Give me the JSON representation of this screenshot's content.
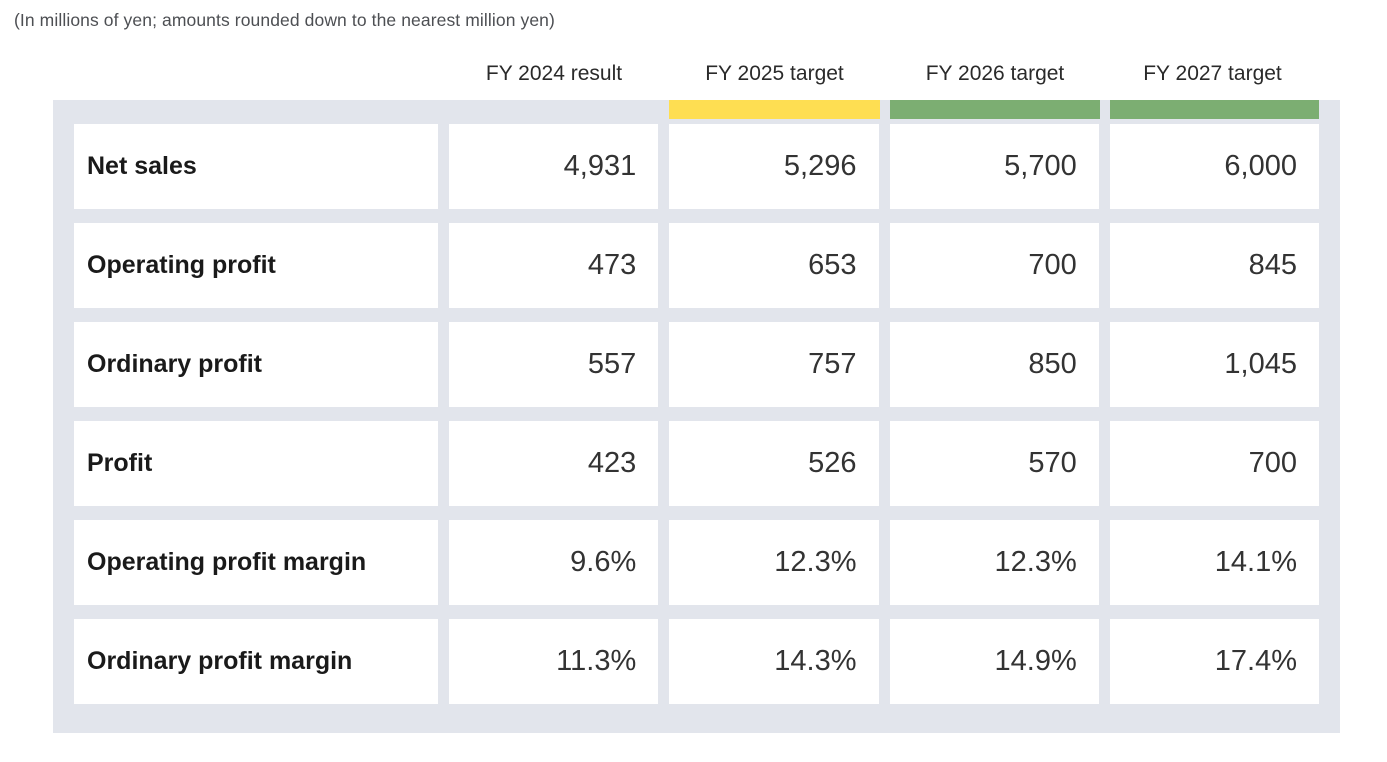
{
  "caption": "(In millions of yen; amounts rounded down to the nearest million yen)",
  "columns": [
    "FY 2024 result",
    "FY 2025 target",
    "FY 2026 target",
    "FY 2027 target"
  ],
  "rows": [
    {
      "label": "Net sales",
      "values": [
        "4,931",
        "5,296",
        "5,700",
        "6,000"
      ]
    },
    {
      "label": "Operating profit",
      "values": [
        "473",
        "653",
        "700",
        "845"
      ]
    },
    {
      "label": "Ordinary profit",
      "values": [
        "557",
        "757",
        "850",
        "1,045"
      ]
    },
    {
      "label": "Profit",
      "values": [
        "423",
        "526",
        "570",
        "700"
      ]
    },
    {
      "label": "Operating profit margin",
      "values": [
        "9.6%",
        "12.3%",
        "12.3%",
        "14.1%"
      ]
    },
    {
      "label": "Ordinary profit margin",
      "values": [
        "11.3%",
        "14.3%",
        "14.9%",
        "17.4%"
      ]
    }
  ],
  "colors": {
    "fy2025_highlight": "#FEDE52",
    "fy2026_highlight": "#7CAE72",
    "fy2027_highlight": "#7CAE72",
    "table_background": "#E2E5EC"
  }
}
